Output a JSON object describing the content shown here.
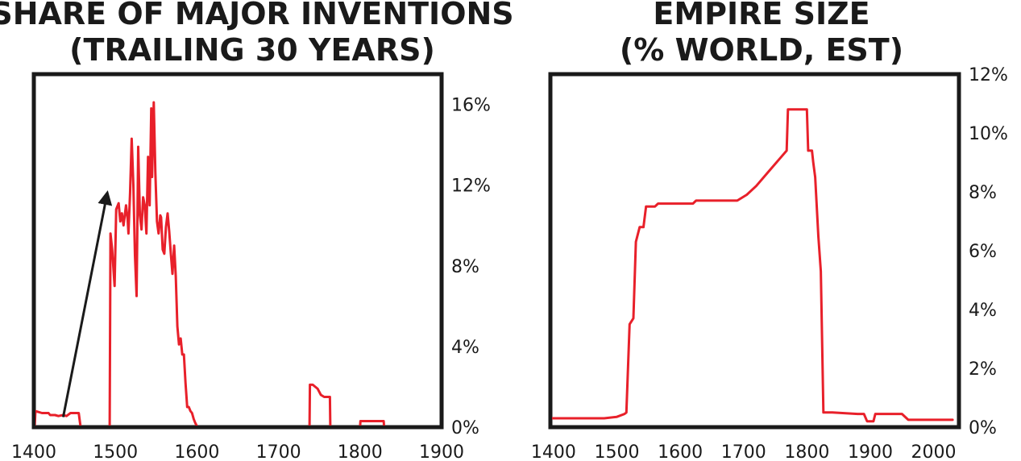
{
  "colors": {
    "series": "#e8202a",
    "axis": "#1a1a1a",
    "arrow": "#1a1a1a"
  },
  "chart_data": [
    {
      "type": "line",
      "title_lines": [
        "SHARE OF MAJOR INVENTIONS",
        "(TRAILING 30 YEARS)"
      ],
      "xlim": [
        1400,
        1900
      ],
      "ylim": [
        0,
        17.5
      ],
      "xticks": [
        1400,
        1500,
        1600,
        1700,
        1800,
        1900
      ],
      "xtick_labels": [
        "1400",
        "1500",
        "1600",
        "1700",
        "1800",
        "1900"
      ],
      "yticks": [
        0,
        4,
        8,
        12,
        16
      ],
      "ytick_labels": [
        "0%",
        "4%",
        "8%",
        "12%",
        "16%"
      ],
      "y_axis_side": "right",
      "grid": false,
      "annotation": {
        "type": "arrow",
        "from": {
          "x": 1436,
          "y": 0.5
        },
        "to": {
          "x": 1490,
          "y": 11.6
        }
      },
      "series": [
        {
          "segments": [
            [
              [
                1401,
                0.0
              ],
              [
                1402,
                0.8
              ],
              [
                1410,
                0.7
              ],
              [
                1418,
                0.7
              ],
              [
                1420,
                0.6
              ],
              [
                1426,
                0.6
              ],
              [
                1430,
                0.55
              ],
              [
                1436,
                0.6
              ],
              [
                1440,
                0.55
              ],
              [
                1445,
                0.7
              ],
              [
                1450,
                0.7
              ],
              [
                1455,
                0.7
              ],
              [
                1457,
                0.1
              ],
              [
                1458,
                0.0
              ]
            ],
            [
              [
                1493,
                0.0
              ],
              [
                1494,
                9.6
              ],
              [
                1496,
                8.8
              ],
              [
                1499,
                7.0
              ],
              [
                1501,
                10.8
              ],
              [
                1504,
                11.1
              ],
              [
                1506,
                10.2
              ],
              [
                1508,
                10.6
              ],
              [
                1510,
                10.0
              ],
              [
                1513,
                11.0
              ],
              [
                1515,
                10.3
              ],
              [
                1516,
                9.6
              ],
              [
                1518,
                11.6
              ],
              [
                1520,
                14.3
              ],
              [
                1522,
                12.0
              ],
              [
                1524,
                8.5
              ],
              [
                1526,
                6.5
              ],
              [
                1528,
                13.9
              ],
              [
                1530,
                10.5
              ],
              [
                1532,
                9.8
              ],
              [
                1534,
                11.4
              ],
              [
                1536,
                11.0
              ],
              [
                1538,
                9.6
              ],
              [
                1540,
                13.4
              ],
              [
                1542,
                11.0
              ],
              [
                1544,
                15.8
              ],
              [
                1545,
                12.4
              ],
              [
                1547,
                16.1
              ],
              [
                1549,
                12.6
              ],
              [
                1551,
                10.2
              ],
              [
                1553,
                9.6
              ],
              [
                1555,
                10.5
              ],
              [
                1556,
                10.4
              ],
              [
                1558,
                8.8
              ],
              [
                1560,
                8.6
              ],
              [
                1562,
                9.9
              ],
              [
                1564,
                10.6
              ],
              [
                1566,
                9.7
              ],
              [
                1568,
                8.6
              ],
              [
                1570,
                7.6
              ],
              [
                1572,
                9.0
              ],
              [
                1574,
                7.5
              ],
              [
                1576,
                5.0
              ],
              [
                1578,
                4.1
              ],
              [
                1580,
                4.4
              ],
              [
                1582,
                3.6
              ],
              [
                1584,
                3.6
              ],
              [
                1586,
                2.2
              ],
              [
                1588,
                1.0
              ],
              [
                1590,
                1.0
              ],
              [
                1592,
                0.8
              ],
              [
                1594,
                0.7
              ],
              [
                1596,
                0.4
              ],
              [
                1598,
                0.2
              ],
              [
                1600,
                0.05
              ]
            ],
            [
              [
                1738,
                0.0
              ],
              [
                1738.5,
                2.1
              ],
              [
                1742,
                2.1
              ],
              [
                1748,
                1.9
              ],
              [
                1752,
                1.6
              ],
              [
                1756,
                1.5
              ],
              [
                1760,
                1.5
              ],
              [
                1763,
                1.5
              ],
              [
                1763.5,
                0.0
              ]
            ],
            [
              [
                1800,
                0.0
              ],
              [
                1800.5,
                0.3
              ],
              [
                1810,
                0.3
              ],
              [
                1820,
                0.3
              ],
              [
                1829,
                0.3
              ],
              [
                1829.5,
                0.0
              ]
            ]
          ]
        }
      ]
    },
    {
      "type": "line",
      "title_lines": [
        "EMPIRE SIZE",
        "(% WORLD, EST)"
      ],
      "xlim": [
        1395,
        2040
      ],
      "ylim": [
        0,
        12
      ],
      "xticks": [
        1400,
        1500,
        1600,
        1700,
        1800,
        1900,
        2000
      ],
      "xtick_labels": [
        "1400",
        "1500",
        "1600",
        "1700",
        "1800",
        "1900",
        "2000"
      ],
      "yticks": [
        0,
        2,
        4,
        6,
        8,
        10,
        12
      ],
      "ytick_labels": [
        "0%",
        "2%",
        "4%",
        "6%",
        "8%",
        "10%",
        "12%"
      ],
      "y_axis_side": "right",
      "grid": false,
      "series": [
        {
          "segments": [
            [
              [
                1396,
                0.3
              ],
              [
                1480,
                0.3
              ],
              [
                1500,
                0.35
              ],
              [
                1512,
                0.45
              ],
              [
                1515,
                0.5
              ],
              [
                1520,
                3.5
              ],
              [
                1526,
                3.7
              ],
              [
                1530,
                6.3
              ],
              [
                1536,
                6.8
              ],
              [
                1542,
                6.8
              ],
              [
                1546,
                7.5
              ],
              [
                1560,
                7.5
              ],
              [
                1565,
                7.6
              ],
              [
                1580,
                7.6
              ],
              [
                1620,
                7.6
              ],
              [
                1625,
                7.7
              ],
              [
                1660,
                7.7
              ],
              [
                1690,
                7.7
              ],
              [
                1705,
                7.9
              ],
              [
                1720,
                8.2
              ],
              [
                1740,
                8.7
              ],
              [
                1760,
                9.2
              ],
              [
                1768,
                9.4
              ],
              [
                1770,
                10.8
              ],
              [
                1800,
                10.8
              ],
              [
                1802,
                9.4
              ],
              [
                1808,
                9.4
              ],
              [
                1810,
                9.0
              ],
              [
                1813,
                8.5
              ],
              [
                1818,
                6.5
              ],
              [
                1822,
                5.3
              ],
              [
                1826,
                0.5
              ],
              [
                1840,
                0.5
              ],
              [
                1880,
                0.45
              ],
              [
                1890,
                0.45
              ],
              [
                1895,
                0.2
              ],
              [
                1905,
                0.2
              ],
              [
                1908,
                0.45
              ],
              [
                1950,
                0.45
              ],
              [
                1960,
                0.25
              ],
              [
                2030,
                0.25
              ]
            ]
          ]
        }
      ]
    }
  ]
}
